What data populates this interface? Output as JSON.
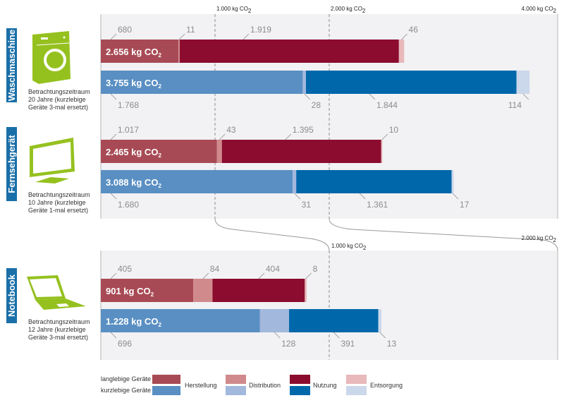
{
  "chart_data": {
    "type": "bar",
    "orientation": "horizontal",
    "stacked": true,
    "unit": "kg CO2",
    "categories_order": [
      "Herstellung",
      "Distribution",
      "Nutzung",
      "Entsorgung"
    ],
    "panels": [
      {
        "axis_ticks": [
          {
            "value": 1000,
            "label": "1.000 kg CO",
            "sub": "2"
          },
          {
            "value": 2000,
            "label": "2.000 kg CO",
            "sub": "2"
          },
          {
            "value": 4000,
            "label": "4.000 kg CO",
            "sub": "2"
          }
        ],
        "xlim": [
          0,
          4000
        ],
        "devices": [
          {
            "name": "Waschmaschine",
            "icon": "washing-machine-icon",
            "note": [
              "Betrachtungszeitraum",
              "20 Jahre (kurzlebige",
              "Geräte 3-mal ersetzt)"
            ],
            "series": [
              {
                "name": "langlebige Geräte",
                "total": 2656,
                "total_label": "2.656 kg CO",
                "values": [
                  680,
                  11,
                  1919,
                  46
                ],
                "value_labels": [
                  "680",
                  "11",
                  "1.919",
                  "46"
                ]
              },
              {
                "name": "kurzlebige Geräte",
                "total": 3755,
                "total_label": "3.755 kg CO",
                "values": [
                  1768,
                  28,
                  1844,
                  114
                ],
                "value_labels": [
                  "1.768",
                  "28",
                  "1.844",
                  "114"
                ]
              }
            ]
          },
          {
            "name": "Fernsehgerät",
            "icon": "television-icon",
            "note": [
              "Betrachtungszeitraum",
              "10 Jahre (kurzlebige",
              "Geräte 1-mal ersetzt)"
            ],
            "series": [
              {
                "name": "langlebige Geräte",
                "total": 2465,
                "total_label": "2.465 kg CO",
                "values": [
                  1017,
                  43,
                  1395,
                  10
                ],
                "value_labels": [
                  "1.017",
                  "43",
                  "1.395",
                  "10"
                ]
              },
              {
                "name": "kurzlebige Geräte",
                "total": 3088,
                "total_label": "3.088 kg CO",
                "values": [
                  1680,
                  31,
                  1361,
                  17
                ],
                "value_labels": [
                  "1.680",
                  "31",
                  "1.361",
                  "17"
                ]
              }
            ]
          }
        ]
      },
      {
        "axis_ticks": [
          {
            "value": 1000,
            "label": "1.000 kg CO",
            "sub": "2"
          },
          {
            "value": 2000,
            "label": "2.000 kg CO",
            "sub": "2"
          }
        ],
        "xlim": [
          0,
          2000
        ],
        "devices": [
          {
            "name": "Notebook",
            "icon": "laptop-icon",
            "note": [
              "Betrachtungszeitraum",
              "12 Jahre (kurzlebige",
              "Geräte 3-mal ersetzt)"
            ],
            "series": [
              {
                "name": "langlebige Geräte",
                "total": 901,
                "total_label": "901 kg CO",
                "values": [
                  405,
                  84,
                  404,
                  8
                ],
                "value_labels": [
                  "405",
                  "84",
                  "404",
                  "8"
                ]
              },
              {
                "name": "kurzlebige Geräte",
                "total": 1228,
                "total_label": "1.228 kg CO",
                "values": [
                  696,
                  128,
                  391,
                  13
                ],
                "value_labels": [
                  "696",
                  "128",
                  "391",
                  "13"
                ]
              }
            ]
          }
        ]
      }
    ],
    "colors": {
      "langlebige Geräte": [
        "#a84a55",
        "#d08a8c",
        "#8b0c2e",
        "#e8b8ba"
      ],
      "kurzlebige Geräte": [
        "#5a8fc3",
        "#a2b8dc",
        "#0068aa",
        "#cbd7ea"
      ]
    },
    "legend": {
      "rows": [
        "langlebige Geräte",
        "kurzlebige Geräte"
      ],
      "entries": [
        "Herstellung",
        "Distribution",
        "Nutzung",
        "Entsorgung"
      ],
      "placement": "bottom"
    },
    "subscript": "2"
  }
}
